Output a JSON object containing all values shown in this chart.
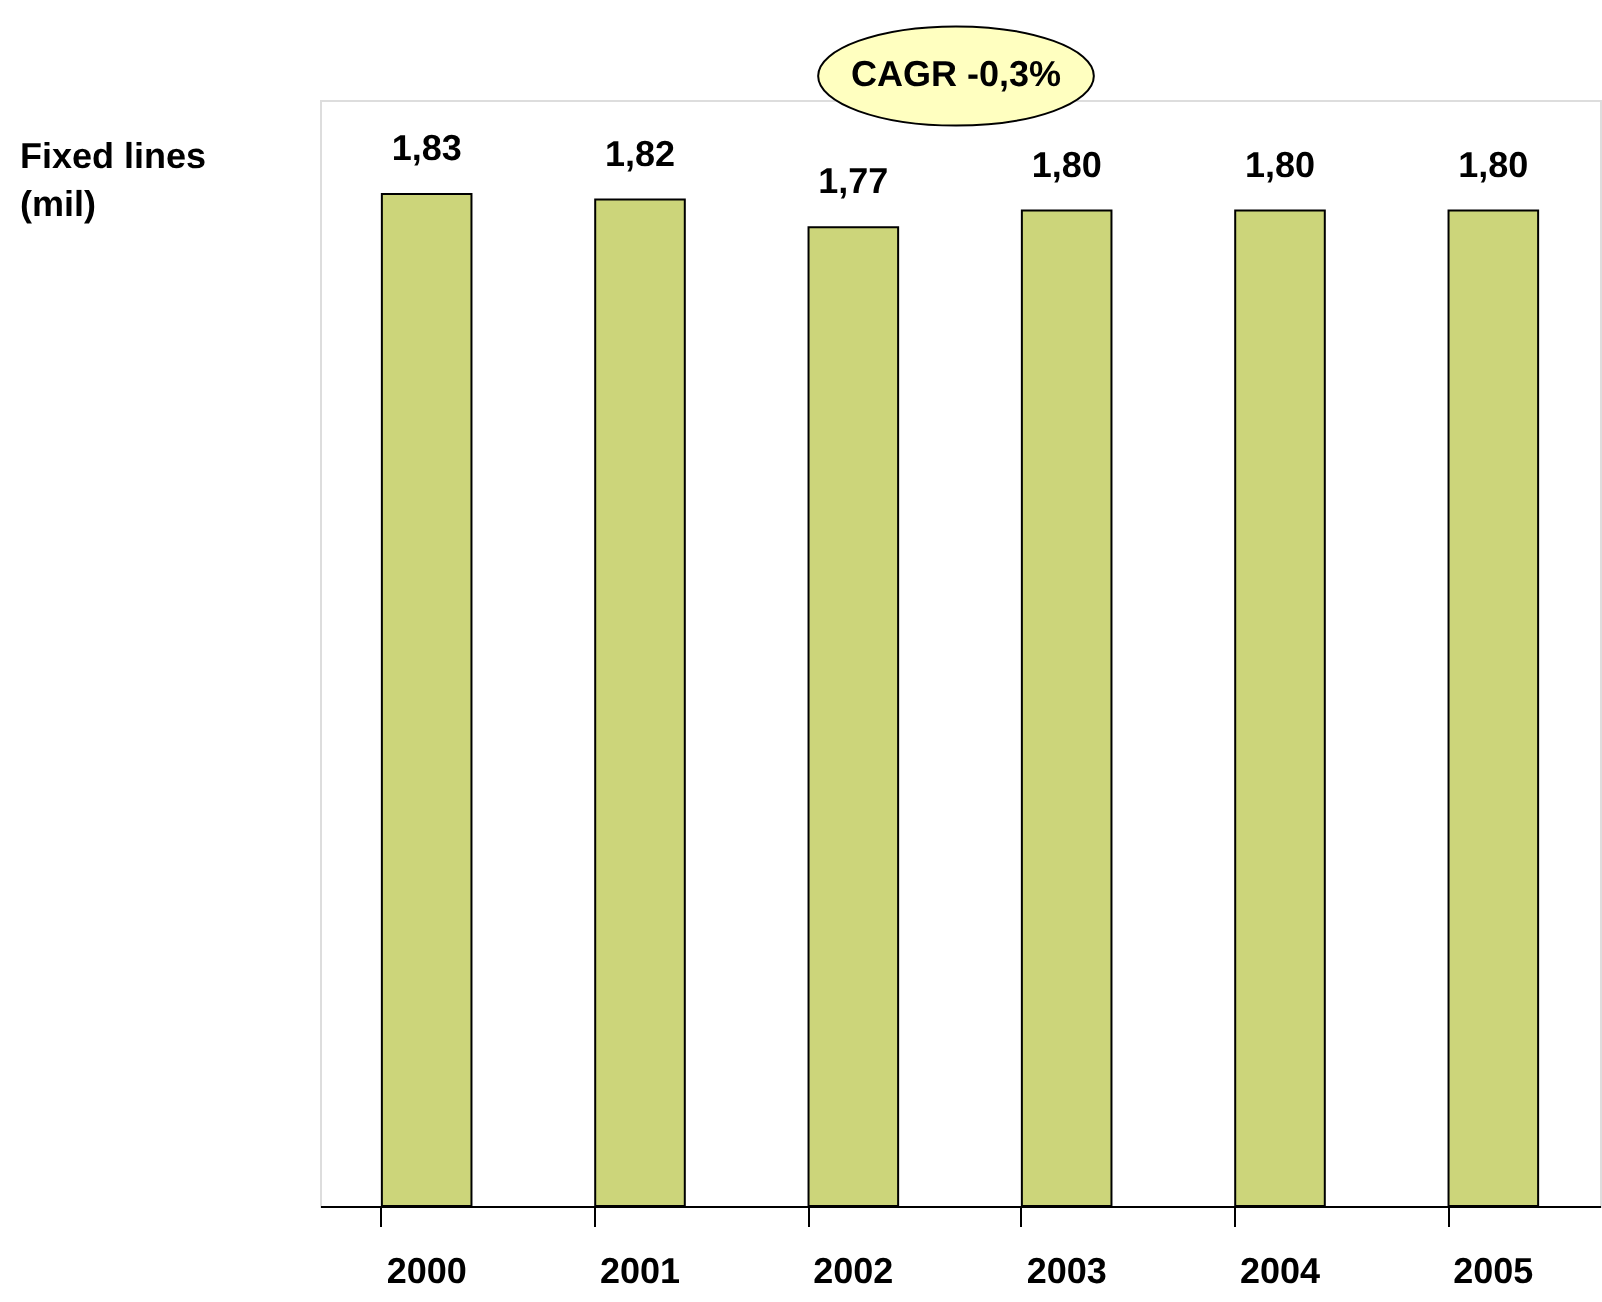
{
  "chart_data": {
    "type": "bar",
    "ylabel": "Fixed lines\n(mil)",
    "categories": [
      "2000",
      "2001",
      "2002",
      "2003",
      "2004",
      "2005"
    ],
    "values": [
      1.83,
      1.82,
      1.77,
      1.8,
      1.8,
      1.8
    ],
    "value_labels": [
      "1,83",
      "1,82",
      "1,77",
      "1,80",
      "1,80",
      "1,80"
    ],
    "color": "#ccd57a",
    "ylim": [
      0,
      2.0
    ],
    "tick_labels": "x",
    "grid": false,
    "annotations": [
      "CAGR -0,3%"
    ]
  }
}
